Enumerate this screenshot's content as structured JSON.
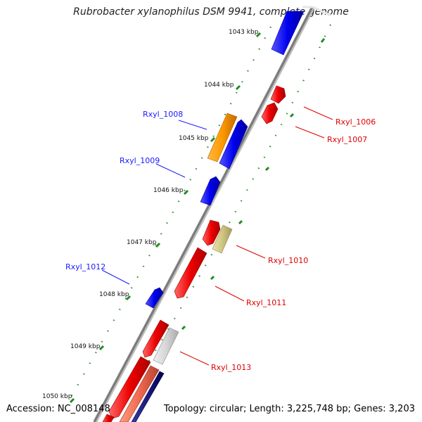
{
  "title": "Rubrobacter xylanophilus DSM 9941, complete genome",
  "footer": {
    "accession": "Accession: NC_008148",
    "summary": "Topology: circular; Length: 3,225,748 bp; Genes: 3,203"
  },
  "scale_ticks": [
    "1043 kbp",
    "1044 kbp",
    "1045 kbp",
    "1046 kbp",
    "1047 kbp",
    "1048 kbp",
    "1049 kbp",
    "1050 kbp"
  ],
  "gene_labels": [
    {
      "label": "Rxyl_1006",
      "strand": "reverse"
    },
    {
      "label": "Rxyl_1007",
      "strand": "reverse"
    },
    {
      "label": "Rxyl_1008",
      "strand": "forward"
    },
    {
      "label": "Rxyl_1009",
      "strand": "forward"
    },
    {
      "label": "Rxyl_1010",
      "strand": "reverse"
    },
    {
      "label": "Rxyl_1011",
      "strand": "reverse"
    },
    {
      "label": "Rxyl_1012",
      "strand": "forward"
    },
    {
      "label": "Rxyl_1013",
      "strand": "reverse"
    }
  ],
  "colors": {
    "forward_label": "#1a1aff",
    "reverse_label": "#e00000",
    "backbone": "#888888",
    "ticks": "#228b22"
  }
}
